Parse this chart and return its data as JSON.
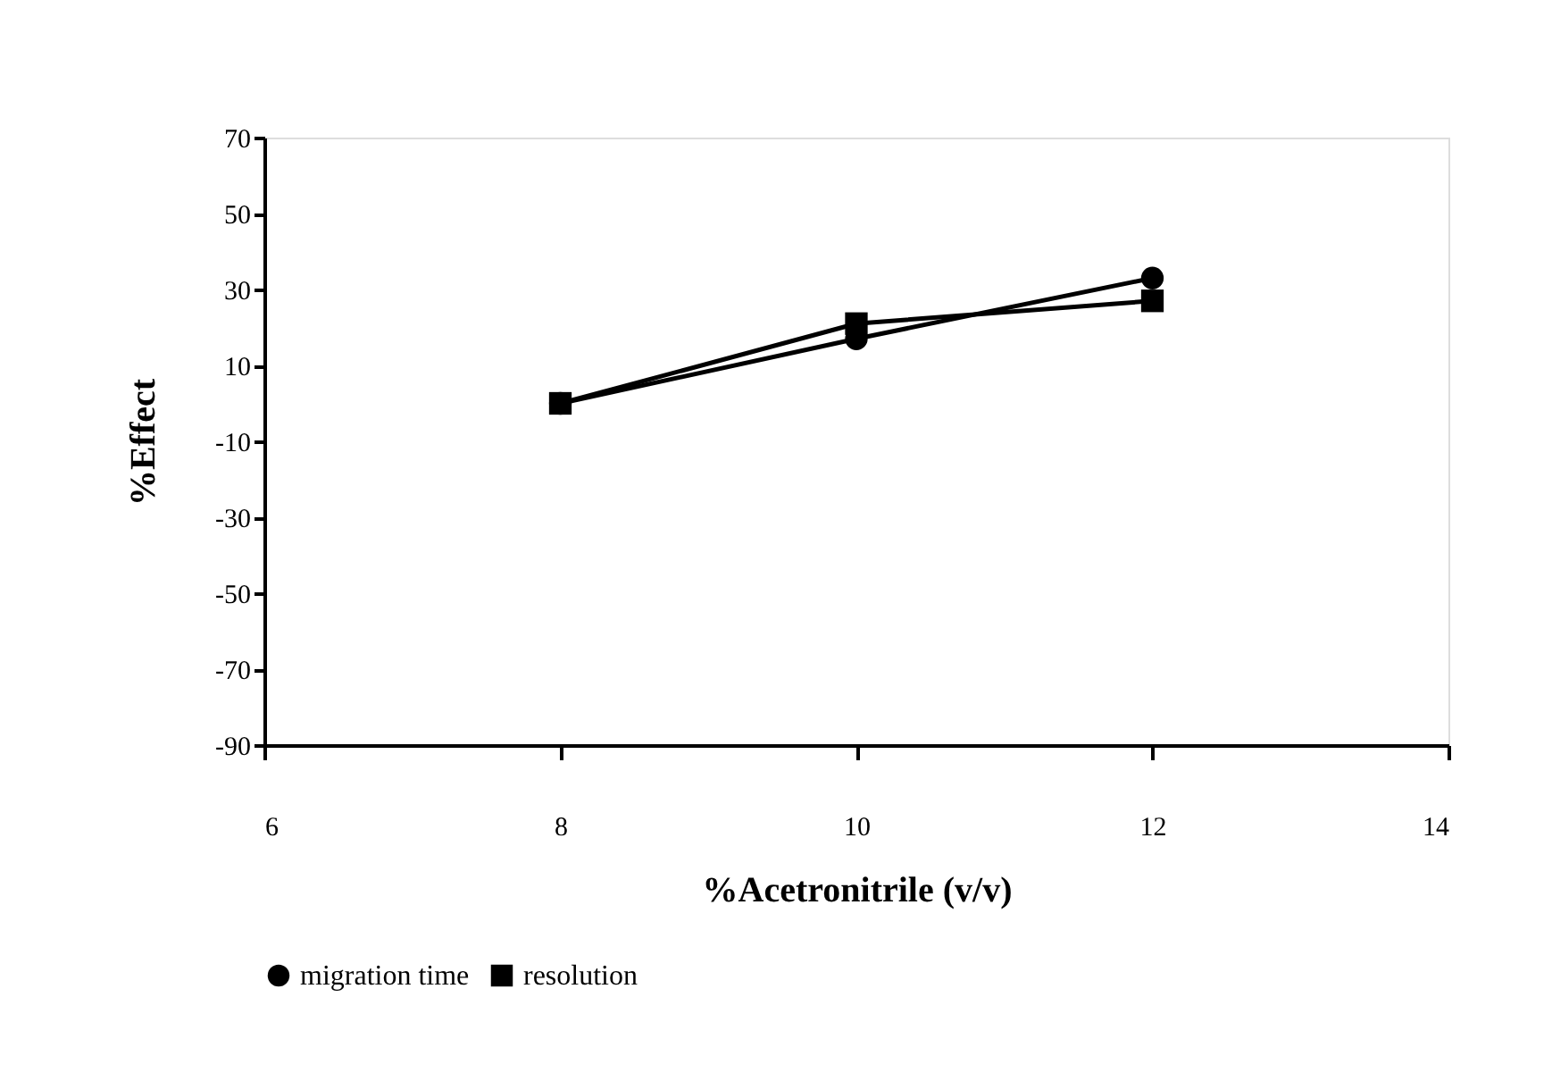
{
  "chart_data": {
    "type": "line",
    "xlabel": "%Acetronitrile (v/v)",
    "ylabel": "%Effect",
    "x": [
      8,
      10,
      12
    ],
    "series": [
      {
        "name": "migration time",
        "color": "#000000",
        "marker": "circle",
        "values": [
          0,
          17,
          33
        ]
      },
      {
        "name": "resolution",
        "color": "#000000",
        "marker": "square",
        "values": [
          0,
          21,
          27
        ]
      }
    ],
    "xlim": [
      6,
      14
    ],
    "xticks": [
      6,
      8,
      10,
      12,
      14
    ],
    "ylim": [
      -90,
      70
    ],
    "yticks": [
      -90,
      -70,
      -50,
      -30,
      -10,
      10,
      30,
      50,
      70
    ],
    "grid": false,
    "legend": "bottom",
    "line_style": "solid"
  }
}
